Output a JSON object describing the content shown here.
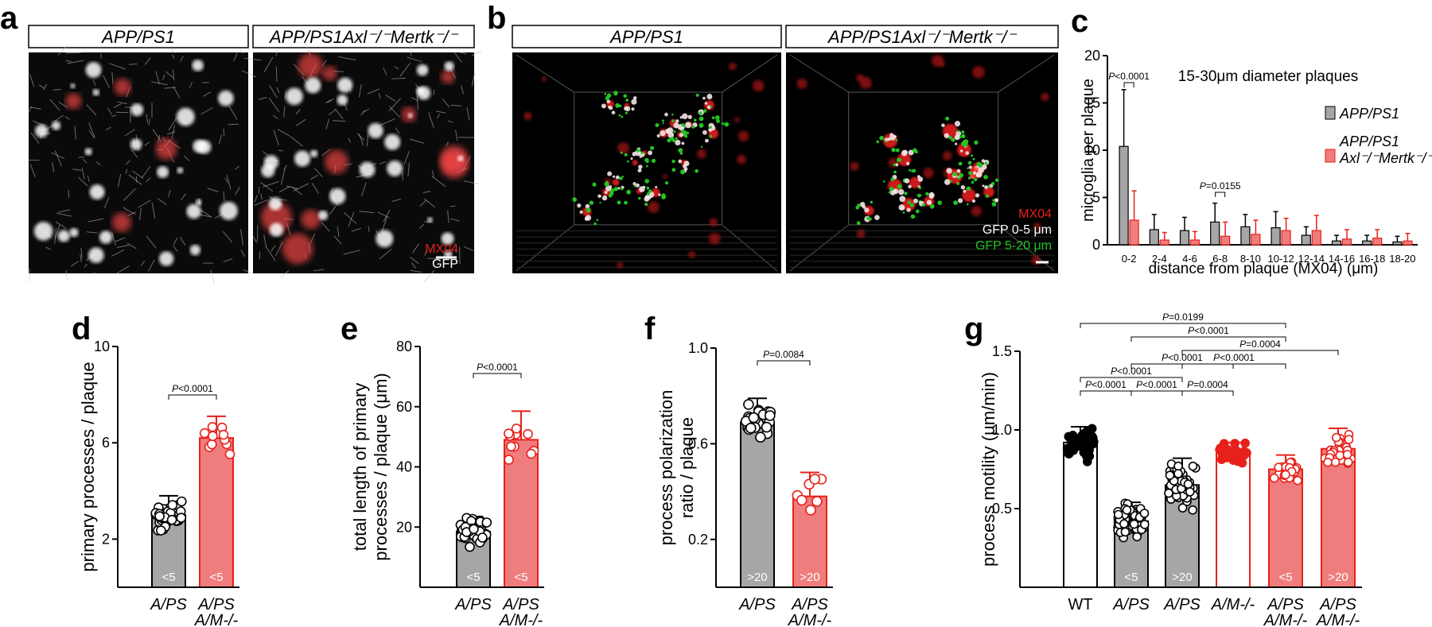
{
  "panel_labels": {
    "a": "a",
    "b": "b",
    "c": "c",
    "d": "d",
    "e": "e",
    "f": "f",
    "g": "g"
  },
  "panel_a": {
    "title_left": "APP/PS1",
    "title_right": "APP/PS1Axl⁻/⁻Mertk⁻/⁻",
    "channel_red": "MX04",
    "channel_white": "GFP"
  },
  "panel_b": {
    "title_left": "APP/PS1",
    "title_right": "APP/PS1Axl⁻/⁻Mertk⁻/⁻",
    "channel_red": "MX04",
    "channel_white": "GFP 0-5 μm",
    "channel_green": "GFP 5-20 μm"
  },
  "colors": {
    "gray_bar": "#a6a6a6",
    "red_bar": "#f07d7d",
    "red_line": "#e8201a",
    "green": "#22c422"
  },
  "chart_data": [
    {
      "panel": "c",
      "type": "bar",
      "title": "15-30μm diameter plaques",
      "xlabel": "distance from plaque (MX04) (μm)",
      "ylabel": "microglia per plaque",
      "ylim": [
        0,
        20
      ],
      "yticks": [
        "0",
        "5",
        "10",
        "15",
        "20"
      ],
      "categories": [
        "0-2",
        "2-4",
        "4-6",
        "6-8",
        "8-10",
        "10-12",
        "12-14",
        "14-16",
        "16-18",
        "18-20"
      ],
      "legend": [
        "APP/PS1",
        "APP/PS1 Axl⁻/⁻Mertk⁻/⁻"
      ],
      "legend_placement": "right",
      "series": [
        {
          "name": "APP/PS1",
          "values": [
            10.4,
            1.6,
            1.5,
            2.4,
            1.9,
            1.8,
            1.0,
            0.4,
            0.4,
            0.3
          ],
          "err": [
            6.0,
            1.6,
            1.4,
            2.0,
            1.3,
            1.7,
            0.9,
            0.6,
            0.6,
            0.6
          ]
        },
        {
          "name": "APP/PS1 Axl⁻/⁻Mertk⁻/⁻",
          "values": [
            2.6,
            0.5,
            0.5,
            0.9,
            1.1,
            1.5,
            1.5,
            0.6,
            0.7,
            0.4
          ],
          "err": [
            3.1,
            0.8,
            0.9,
            1.5,
            1.5,
            1.3,
            1.6,
            1.0,
            0.9,
            0.8
          ]
        }
      ],
      "annotations": [
        {
          "text": "P<0.0001",
          "category": "0-2"
        },
        {
          "text": "P=0.0155",
          "category": "6-8"
        }
      ]
    },
    {
      "panel": "d",
      "type": "bar",
      "ylabel": "primary processes / plaque",
      "ylim": [
        0,
        10
      ],
      "yticks": [
        "2",
        "6",
        "10"
      ],
      "categories": [
        "A/PS",
        "A/PS A/M-/-"
      ],
      "values": [
        3.0,
        6.2
      ],
      "err": [
        0.8,
        0.9
      ],
      "n_labels": [
        "<5",
        "<5"
      ],
      "pvalue": "P<0.0001"
    },
    {
      "panel": "e",
      "type": "bar",
      "ylabel": "total length of primary processes / plaque (μm)",
      "ylim": [
        0,
        80
      ],
      "yticks": [
        "20",
        "40",
        "60",
        "80"
      ],
      "categories": [
        "A/PS",
        "A/PS A/M-/-"
      ],
      "values": [
        18.5,
        49.0
      ],
      "err": [
        5.0,
        9.5
      ],
      "n_labels": [
        "<5",
        "<5"
      ],
      "pvalue": "P<0.0001"
    },
    {
      "panel": "f",
      "type": "bar",
      "ylabel": "process polarization ratio / plaque",
      "ylim": [
        0,
        1.0
      ],
      "yticks": [
        "0.2",
        "0.6",
        "1.0"
      ],
      "categories": [
        "A/PS",
        "A/PS A/M-/-"
      ],
      "values": [
        0.69,
        0.38
      ],
      "err": [
        0.1,
        0.1
      ],
      "n_labels": [
        ">20",
        ">20"
      ],
      "pvalue": "P=0.0084"
    },
    {
      "panel": "g",
      "type": "bar",
      "ylabel": "process motility (μm/min)",
      "ylim": [
        0,
        1.5
      ],
      "yticks": [
        "0.5",
        "1.0",
        "1.5"
      ],
      "categories": [
        "WT",
        "A/PS",
        "A/PS",
        "A/M-/-",
        "A/PS A/M-/-",
        "A/PS A/M-/-"
      ],
      "values": [
        0.92,
        0.42,
        0.65,
        0.85,
        0.75,
        0.88
      ],
      "err": [
        0.1,
        0.12,
        0.17,
        0.07,
        0.09,
        0.13
      ],
      "n_labels": [
        "",
        "<5",
        ">20",
        "",
        "<5",
        ">20"
      ],
      "pvalues": [
        "P=0.0199",
        "P<0.0001",
        "P=0.0004",
        "P<0.0001",
        "P<0.0001",
        "P<0.0001",
        "P<0.0001",
        "P<0.0001",
        "P=0.0004"
      ]
    }
  ]
}
